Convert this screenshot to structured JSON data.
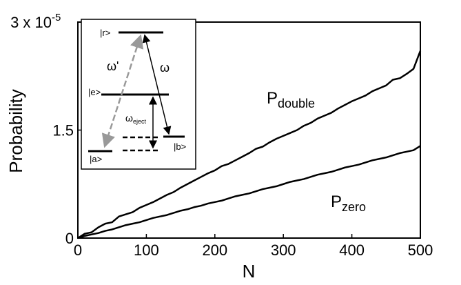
{
  "chart_data": {
    "type": "line",
    "xlabel": "N",
    "ylabel": "Probability",
    "x": [
      0,
      10,
      20,
      30,
      40,
      50,
      60,
      70,
      80,
      90,
      100,
      110,
      120,
      130,
      140,
      150,
      160,
      170,
      180,
      190,
      200,
      210,
      220,
      230,
      240,
      250,
      260,
      270,
      280,
      290,
      300,
      310,
      320,
      330,
      340,
      350,
      360,
      370,
      380,
      390,
      400,
      410,
      420,
      430,
      440,
      450,
      460,
      470,
      480,
      490,
      500
    ],
    "series": [
      {
        "name": "P",
        "subscript": "double",
        "color": "#000000",
        "values": [
          0,
          0.06,
          0.08,
          0.15,
          0.2,
          0.22,
          0.3,
          0.33,
          0.36,
          0.42,
          0.46,
          0.5,
          0.55,
          0.6,
          0.64,
          0.7,
          0.75,
          0.8,
          0.85,
          0.9,
          0.94,
          1.0,
          1.03,
          1.08,
          1.13,
          1.18,
          1.24,
          1.27,
          1.33,
          1.38,
          1.42,
          1.46,
          1.5,
          1.56,
          1.6,
          1.66,
          1.7,
          1.74,
          1.8,
          1.85,
          1.9,
          1.94,
          1.98,
          2.04,
          2.08,
          2.12,
          2.2,
          2.22,
          2.28,
          2.35,
          2.6
        ]
      },
      {
        "name": "P",
        "subscript": "zero",
        "color": "#000000",
        "values": [
          0,
          0.03,
          0.05,
          0.07,
          0.1,
          0.12,
          0.15,
          0.18,
          0.2,
          0.22,
          0.25,
          0.28,
          0.3,
          0.32,
          0.35,
          0.38,
          0.4,
          0.43,
          0.45,
          0.48,
          0.5,
          0.52,
          0.55,
          0.58,
          0.6,
          0.62,
          0.65,
          0.68,
          0.7,
          0.72,
          0.75,
          0.78,
          0.8,
          0.82,
          0.85,
          0.88,
          0.9,
          0.92,
          0.95,
          0.98,
          1.0,
          1.02,
          1.05,
          1.08,
          1.1,
          1.12,
          1.15,
          1.18,
          1.2,
          1.22,
          1.28
        ]
      }
    ],
    "xlim": [
      0,
      500
    ],
    "xticks": [
      0,
      100,
      200,
      300,
      400,
      500
    ],
    "ylim": [
      0,
      3
    ],
    "yticks": [
      0,
      1.5,
      {
        "value": 3,
        "label": "3 x 10"
      }
    ],
    "y_exponent": "-5",
    "inset": {
      "level_r": "|r>",
      "level_e": "|e>",
      "level_a": "|a>",
      "level_b": "|b>",
      "omega_prime": "ω'",
      "omega": "ω",
      "omega_eject": "ω",
      "omega_eject_sub": "eject"
    }
  }
}
